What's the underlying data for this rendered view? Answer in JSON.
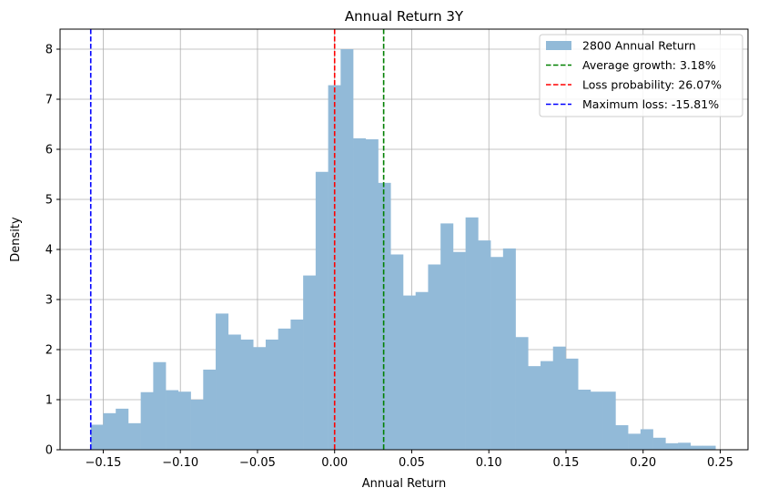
{
  "chart_data": {
    "type": "bar",
    "title": "Annual Return 3Y",
    "xlabel": "Annual Return",
    "ylabel": "Density",
    "xlim": [
      -0.178,
      0.268
    ],
    "ylim": [
      0,
      8.4
    ],
    "grid": true,
    "xticks": [
      -0.15,
      -0.1,
      -0.05,
      0.0,
      0.05,
      0.1,
      0.15,
      0.2,
      0.25
    ],
    "xtick_labels": [
      "−0.15",
      "−0.10",
      "−0.05",
      "0.00",
      "0.05",
      "0.10",
      "0.15",
      "0.20",
      "0.25"
    ],
    "yticks": [
      0,
      1,
      2,
      3,
      4,
      5,
      6,
      7,
      8
    ],
    "ytick_labels": [
      "0",
      "1",
      "2",
      "3",
      "4",
      "5",
      "6",
      "7",
      "8"
    ],
    "histogram": {
      "name": "2800 Annual Return",
      "color": "#92bad8",
      "bin_start": -0.1581,
      "bin_width": 0.0081,
      "values": [
        0.5,
        0.73,
        0.82,
        0.53,
        1.15,
        1.75,
        1.19,
        1.16,
        1.0,
        1.6,
        2.72,
        2.3,
        2.2,
        2.05,
        2.2,
        2.42,
        2.6,
        3.48,
        5.55,
        7.28,
        8.0,
        6.22,
        6.2,
        5.33,
        3.9,
        3.08,
        3.15,
        3.7,
        4.52,
        3.95,
        4.64,
        4.18,
        3.85,
        4.02,
        2.25,
        1.67,
        1.77,
        2.06,
        1.82,
        1.2,
        1.16,
        1.16,
        0.49,
        0.32,
        0.41,
        0.24,
        0.13,
        0.14,
        0.08,
        0.08
      ]
    },
    "vlines": [
      {
        "name": "Average growth: 3.18%",
        "x": 0.0318,
        "color": "#008000"
      },
      {
        "name": "Loss probability: 26.07%",
        "x": 0.0,
        "color": "#ff0000"
      },
      {
        "name": "Maximum loss: -15.81%",
        "x": -0.1581,
        "color": "#0000ff"
      }
    ],
    "legend_position": "top-right",
    "legend": {
      "entries": [
        "2800 Annual Return",
        "Average growth: 3.18%",
        "Loss probability: 26.07%",
        "Maximum loss: -15.81%"
      ]
    }
  }
}
